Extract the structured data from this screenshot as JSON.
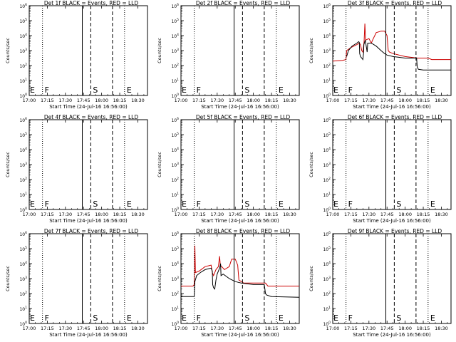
{
  "page": {
    "background": "#ffffff",
    "axis_color": "#000000",
    "events_color": "#000000",
    "lld_color": "#cc0000"
  },
  "chart_data": [
    {
      "type": "line",
      "title": "Det 1f BLACK = Events, RED = LLD",
      "xlabel": "Start Time (24-Jul-16 16:56:00)",
      "ylabel": "Counts/sec",
      "x_ticks": [
        "17:00",
        "17:15",
        "17:30",
        "17:45",
        "18:00",
        "18:15",
        "18:30"
      ],
      "x_tick_minutes": [
        0,
        15,
        30,
        45,
        60,
        75,
        90
      ],
      "xlim": [
        0,
        98
      ],
      "y_scale": "log",
      "ylim_exp": [
        0,
        6
      ],
      "y_tick_labels": [
        "10^0",
        "10^1",
        "10^2",
        "10^3",
        "10^4",
        "10^5",
        "10^6"
      ],
      "grid": false,
      "markers": [
        {
          "label": "F",
          "minute": 11,
          "style": "dotted"
        },
        {
          "label": "",
          "minute": 44,
          "style": "solid"
        },
        {
          "label": "S",
          "minute": 51,
          "style": "dashed"
        },
        {
          "label": "",
          "minute": 69,
          "style": "dashed"
        },
        {
          "label": "E",
          "minute": 79,
          "style": "dotted"
        }
      ],
      "series": []
    },
    {
      "type": "line",
      "title": "Det 2f BLACK = Events, RED = LLD",
      "xlabel": "Start Time (24-Jul-16 16:56:00)",
      "ylabel": "Counts/sec",
      "x_ticks": [
        "17:00",
        "17:15",
        "17:30",
        "17:45",
        "18:00",
        "18:15",
        "18:30"
      ],
      "x_tick_minutes": [
        0,
        15,
        30,
        45,
        60,
        75,
        90
      ],
      "xlim": [
        0,
        98
      ],
      "y_scale": "log",
      "ylim_exp": [
        0,
        6
      ],
      "y_tick_labels": [
        "10^0",
        "10^1",
        "10^2",
        "10^3",
        "10^4",
        "10^5",
        "10^6"
      ],
      "grid": false,
      "markers": [
        {
          "label": "F",
          "minute": 11,
          "style": "dotted"
        },
        {
          "label": "",
          "minute": 44,
          "style": "solid"
        },
        {
          "label": "S",
          "minute": 51,
          "style": "dashed"
        },
        {
          "label": "",
          "minute": 69,
          "style": "dashed"
        },
        {
          "label": "E",
          "minute": 79,
          "style": "dotted"
        }
      ],
      "series": []
    },
    {
      "type": "line",
      "title": "Det 3f BLACK = Events, RED = LLD",
      "xlabel": "Start Time (24-Jul-16 16:56:00)",
      "ylabel": "Counts/sec",
      "x_ticks": [
        "17:00",
        "17:15",
        "17:30",
        "17:45",
        "18:00",
        "18:15",
        "18:30"
      ],
      "x_tick_minutes": [
        0,
        15,
        30,
        45,
        60,
        75,
        90
      ],
      "xlim": [
        0,
        98
      ],
      "y_scale": "log",
      "ylim_exp": [
        0,
        6
      ],
      "y_tick_labels": [
        "10^0",
        "10^1",
        "10^2",
        "10^3",
        "10^4",
        "10^5",
        "10^6"
      ],
      "grid": false,
      "markers": [
        {
          "label": "F",
          "minute": 11,
          "style": "dotted"
        },
        {
          "label": "",
          "minute": 44,
          "style": "solid"
        },
        {
          "label": "S",
          "minute": 51,
          "style": "dashed"
        },
        {
          "label": "",
          "minute": 69,
          "style": "dashed"
        },
        {
          "label": "E",
          "minute": 79,
          "style": "dotted"
        }
      ],
      "series": [
        {
          "color": "#cc0000",
          "points": [
            [
              0,
              2.3
            ],
            [
              8,
              2.35
            ],
            [
              11,
              2.4
            ],
            [
              11.5,
              3.0
            ],
            [
              15,
              3.2
            ],
            [
              20,
              3.4
            ],
            [
              22,
              3.5
            ],
            [
              23,
              3.4
            ],
            [
              24,
              3.0
            ],
            [
              25,
              2.9
            ],
            [
              26,
              3.6
            ],
            [
              26.6,
              4.8
            ],
            [
              27.2,
              3.7
            ],
            [
              30,
              3.8
            ],
            [
              32,
              3.5
            ],
            [
              33,
              3.7
            ],
            [
              36,
              4.2
            ],
            [
              40,
              4.3
            ],
            [
              43,
              4.3
            ],
            [
              45,
              4.0
            ],
            [
              46,
              3.0
            ],
            [
              47,
              2.9
            ],
            [
              50,
              2.8
            ],
            [
              60,
              2.6
            ],
            [
              70,
              2.5
            ],
            [
              79,
              2.5
            ],
            [
              82,
              2.4
            ],
            [
              98,
              2.4
            ]
          ]
        },
        {
          "color": "#000000",
          "points": [
            [
              11.5,
              2.6
            ],
            [
              13,
              3.0
            ],
            [
              16,
              3.3
            ],
            [
              20,
              3.5
            ],
            [
              21.5,
              3.6
            ],
            [
              22,
              3.55
            ],
            [
              22.3,
              2.8
            ],
            [
              23,
              2.6
            ],
            [
              24,
              2.5
            ],
            [
              25,
              2.4
            ],
            [
              25.5,
              2.8
            ],
            [
              25.8,
              3.4
            ],
            [
              26.6,
              3.6
            ],
            [
              27,
              3.7
            ],
            [
              28.5,
              2.9
            ],
            [
              29,
              3.5
            ],
            [
              32,
              3.5
            ],
            [
              36,
              3.3
            ],
            [
              40,
              3.0
            ],
            [
              43,
              2.8
            ],
            [
              45,
              2.7
            ],
            [
              50,
              2.6
            ],
            [
              60,
              2.5
            ],
            [
              69.5,
              2.5
            ],
            [
              70,
              1.9
            ],
            [
              71,
              1.75
            ],
            [
              75,
              1.7
            ],
            [
              98,
              1.7
            ]
          ]
        }
      ]
    },
    {
      "type": "line",
      "title": "Det 4f BLACK = Events, RED = LLD",
      "xlabel": "Start Time (24-Jul-16 16:56:00)",
      "ylabel": "Counts/sec",
      "x_ticks": [
        "17:00",
        "17:15",
        "17:30",
        "17:45",
        "18:00",
        "18:15",
        "18:30"
      ],
      "x_tick_minutes": [
        0,
        15,
        30,
        45,
        60,
        75,
        90
      ],
      "xlim": [
        0,
        98
      ],
      "y_scale": "log",
      "ylim_exp": [
        0,
        6
      ],
      "y_tick_labels": [
        "10^0",
        "10^1",
        "10^2",
        "10^3",
        "10^4",
        "10^5",
        "10^6"
      ],
      "grid": false,
      "markers": [
        {
          "label": "F",
          "minute": 11,
          "style": "dotted"
        },
        {
          "label": "",
          "minute": 44,
          "style": "solid"
        },
        {
          "label": "S",
          "minute": 51,
          "style": "dashed"
        },
        {
          "label": "",
          "minute": 69,
          "style": "dashed"
        },
        {
          "label": "E",
          "minute": 79,
          "style": "dotted"
        }
      ],
      "series": []
    },
    {
      "type": "line",
      "title": "Det 5f BLACK = Events, RED = LLD",
      "xlabel": "Start Time (24-Jul-16 16:56:00)",
      "ylabel": "Counts/sec",
      "x_ticks": [
        "17:00",
        "17:15",
        "17:30",
        "17:45",
        "18:00",
        "18:15",
        "18:30"
      ],
      "x_tick_minutes": [
        0,
        15,
        30,
        45,
        60,
        75,
        90
      ],
      "xlim": [
        0,
        98
      ],
      "y_scale": "log",
      "ylim_exp": [
        0,
        6
      ],
      "y_tick_labels": [
        "10^0",
        "10^1",
        "10^2",
        "10^3",
        "10^4",
        "10^5",
        "10^6"
      ],
      "grid": false,
      "markers": [
        {
          "label": "F",
          "minute": 11,
          "style": "dotted"
        },
        {
          "label": "",
          "minute": 44,
          "style": "solid"
        },
        {
          "label": "S",
          "minute": 51,
          "style": "dashed"
        },
        {
          "label": "",
          "minute": 69,
          "style": "dashed"
        },
        {
          "label": "E",
          "minute": 79,
          "style": "dotted"
        }
      ],
      "series": []
    },
    {
      "type": "line",
      "title": "Det 6f BLACK = Events, RED = LLD",
      "xlabel": "Start Time (24-Jul-16 16:56:00)",
      "ylabel": "Counts/sec",
      "x_ticks": [
        "17:00",
        "17:15",
        "17:30",
        "17:45",
        "18:00",
        "18:15",
        "18:30"
      ],
      "x_tick_minutes": [
        0,
        15,
        30,
        45,
        60,
        75,
        90
      ],
      "xlim": [
        0,
        98
      ],
      "y_scale": "log",
      "ylim_exp": [
        0,
        6
      ],
      "y_tick_labels": [
        "10^0",
        "10^1",
        "10^2",
        "10^3",
        "10^4",
        "10^5",
        "10^6"
      ],
      "grid": false,
      "markers": [
        {
          "label": "F",
          "minute": 11,
          "style": "dotted"
        },
        {
          "label": "",
          "minute": 44,
          "style": "solid"
        },
        {
          "label": "S",
          "minute": 51,
          "style": "dashed"
        },
        {
          "label": "",
          "minute": 69,
          "style": "dashed"
        },
        {
          "label": "E",
          "minute": 79,
          "style": "dotted"
        }
      ],
      "series": []
    },
    {
      "type": "line",
      "title": "Det 7f BLACK = Events, RED = LLD",
      "xlabel": "Start Time (24-Jul-16 16:56:00)",
      "ylabel": "Counts/sec",
      "x_ticks": [
        "17:00",
        "17:15",
        "17:30",
        "17:45",
        "18:00",
        "18:15",
        "18:30"
      ],
      "x_tick_minutes": [
        0,
        15,
        30,
        45,
        60,
        75,
        90
      ],
      "xlim": [
        0,
        98
      ],
      "y_scale": "log",
      "ylim_exp": [
        0,
        6
      ],
      "y_tick_labels": [
        "10^0",
        "10^1",
        "10^2",
        "10^3",
        "10^4",
        "10^5",
        "10^6"
      ],
      "grid": false,
      "markers": [
        {
          "label": "F",
          "minute": 11,
          "style": "dotted"
        },
        {
          "label": "",
          "minute": 44,
          "style": "solid"
        },
        {
          "label": "S",
          "minute": 51,
          "style": "dashed"
        },
        {
          "label": "",
          "minute": 69,
          "style": "dashed"
        },
        {
          "label": "E",
          "minute": 79,
          "style": "dotted"
        }
      ],
      "series": []
    },
    {
      "type": "line",
      "title": "Det 8f BLACK = Events, RED = LLD",
      "xlabel": "Start Time (24-Jul-16 16:56:00)",
      "ylabel": "Counts/sec",
      "x_ticks": [
        "17:00",
        "17:15",
        "17:30",
        "17:45",
        "18:00",
        "18:15",
        "18:30"
      ],
      "x_tick_minutes": [
        0,
        15,
        30,
        45,
        60,
        75,
        90
      ],
      "xlim": [
        0,
        98
      ],
      "y_scale": "log",
      "ylim_exp": [
        0,
        6
      ],
      "y_tick_labels": [
        "10^0",
        "10^1",
        "10^2",
        "10^3",
        "10^4",
        "10^5",
        "10^6"
      ],
      "grid": false,
      "markers": [
        {
          "label": "F",
          "minute": 11,
          "style": "dotted"
        },
        {
          "label": "",
          "minute": 44,
          "style": "solid"
        },
        {
          "label": "S",
          "minute": 51,
          "style": "dashed"
        },
        {
          "label": "",
          "minute": 69,
          "style": "dashed"
        },
        {
          "label": "E",
          "minute": 79,
          "style": "dotted"
        }
      ],
      "series": [
        {
          "color": "#cc0000",
          "points": [
            [
              0,
              2.5
            ],
            [
              10,
              2.5
            ],
            [
              11,
              2.6
            ],
            [
              11.5,
              5.2
            ],
            [
              12,
              3.4
            ],
            [
              15,
              3.5
            ],
            [
              20,
              3.8
            ],
            [
              25,
              3.9
            ],
            [
              26,
              3.4
            ],
            [
              27,
              3.2
            ],
            [
              29,
              3.6
            ],
            [
              31,
              3.8
            ],
            [
              32,
              4.5
            ],
            [
              32.6,
              3.9
            ],
            [
              36,
              3.6
            ],
            [
              40,
              3.8
            ],
            [
              42,
              4.3
            ],
            [
              45,
              4.3
            ],
            [
              47,
              3.9
            ],
            [
              48,
              2.9
            ],
            [
              52,
              2.7
            ],
            [
              60,
              2.7
            ],
            [
              70,
              2.7
            ],
            [
              72,
              2.5
            ],
            [
              79,
              2.5
            ],
            [
              98,
              2.5
            ]
          ]
        },
        {
          "color": "#000000",
          "points": [
            [
              0,
              1.8
            ],
            [
              10,
              1.8
            ],
            [
              11,
              1.8
            ],
            [
              11.5,
              2.8
            ],
            [
              13,
              3.2
            ],
            [
              16,
              3.4
            ],
            [
              20,
              3.6
            ],
            [
              25,
              3.7
            ],
            [
              26,
              3.5
            ],
            [
              26.3,
              2.6
            ],
            [
              27,
              2.4
            ],
            [
              28,
              2.3
            ],
            [
              29,
              2.9
            ],
            [
              30,
              3.3
            ],
            [
              31,
              3.5
            ],
            [
              32,
              3.7
            ],
            [
              32.8,
              4.0
            ],
            [
              33.2,
              3.2
            ],
            [
              35,
              3.3
            ],
            [
              40,
              3.0
            ],
            [
              45,
              2.8
            ],
            [
              50,
              2.7
            ],
            [
              60,
              2.6
            ],
            [
              69,
              2.6
            ],
            [
              70,
              2.0
            ],
            [
              71,
              1.9
            ],
            [
              75,
              1.8
            ],
            [
              98,
              1.75
            ]
          ]
        }
      ]
    },
    {
      "type": "line",
      "title": "Det 9f BLACK = Events, RED = LLD",
      "xlabel": "Start Time (24-Jul-16 16:56:00)",
      "ylabel": "Counts/sec",
      "x_ticks": [
        "17:00",
        "17:15",
        "17:30",
        "17:45",
        "18:00",
        "18:15",
        "18:30"
      ],
      "x_tick_minutes": [
        0,
        15,
        30,
        45,
        60,
        75,
        90
      ],
      "xlim": [
        0,
        98
      ],
      "y_scale": "log",
      "ylim_exp": [
        0,
        6
      ],
      "y_tick_labels": [
        "10^0",
        "10^1",
        "10^2",
        "10^3",
        "10^4",
        "10^5",
        "10^6"
      ],
      "grid": false,
      "markers": [
        {
          "label": "F",
          "minute": 11,
          "style": "dotted"
        },
        {
          "label": "",
          "minute": 44,
          "style": "solid"
        },
        {
          "label": "S",
          "minute": 51,
          "style": "dashed"
        },
        {
          "label": "",
          "minute": 69,
          "style": "dashed"
        },
        {
          "label": "E",
          "minute": 79,
          "style": "dotted"
        }
      ],
      "series": []
    }
  ]
}
